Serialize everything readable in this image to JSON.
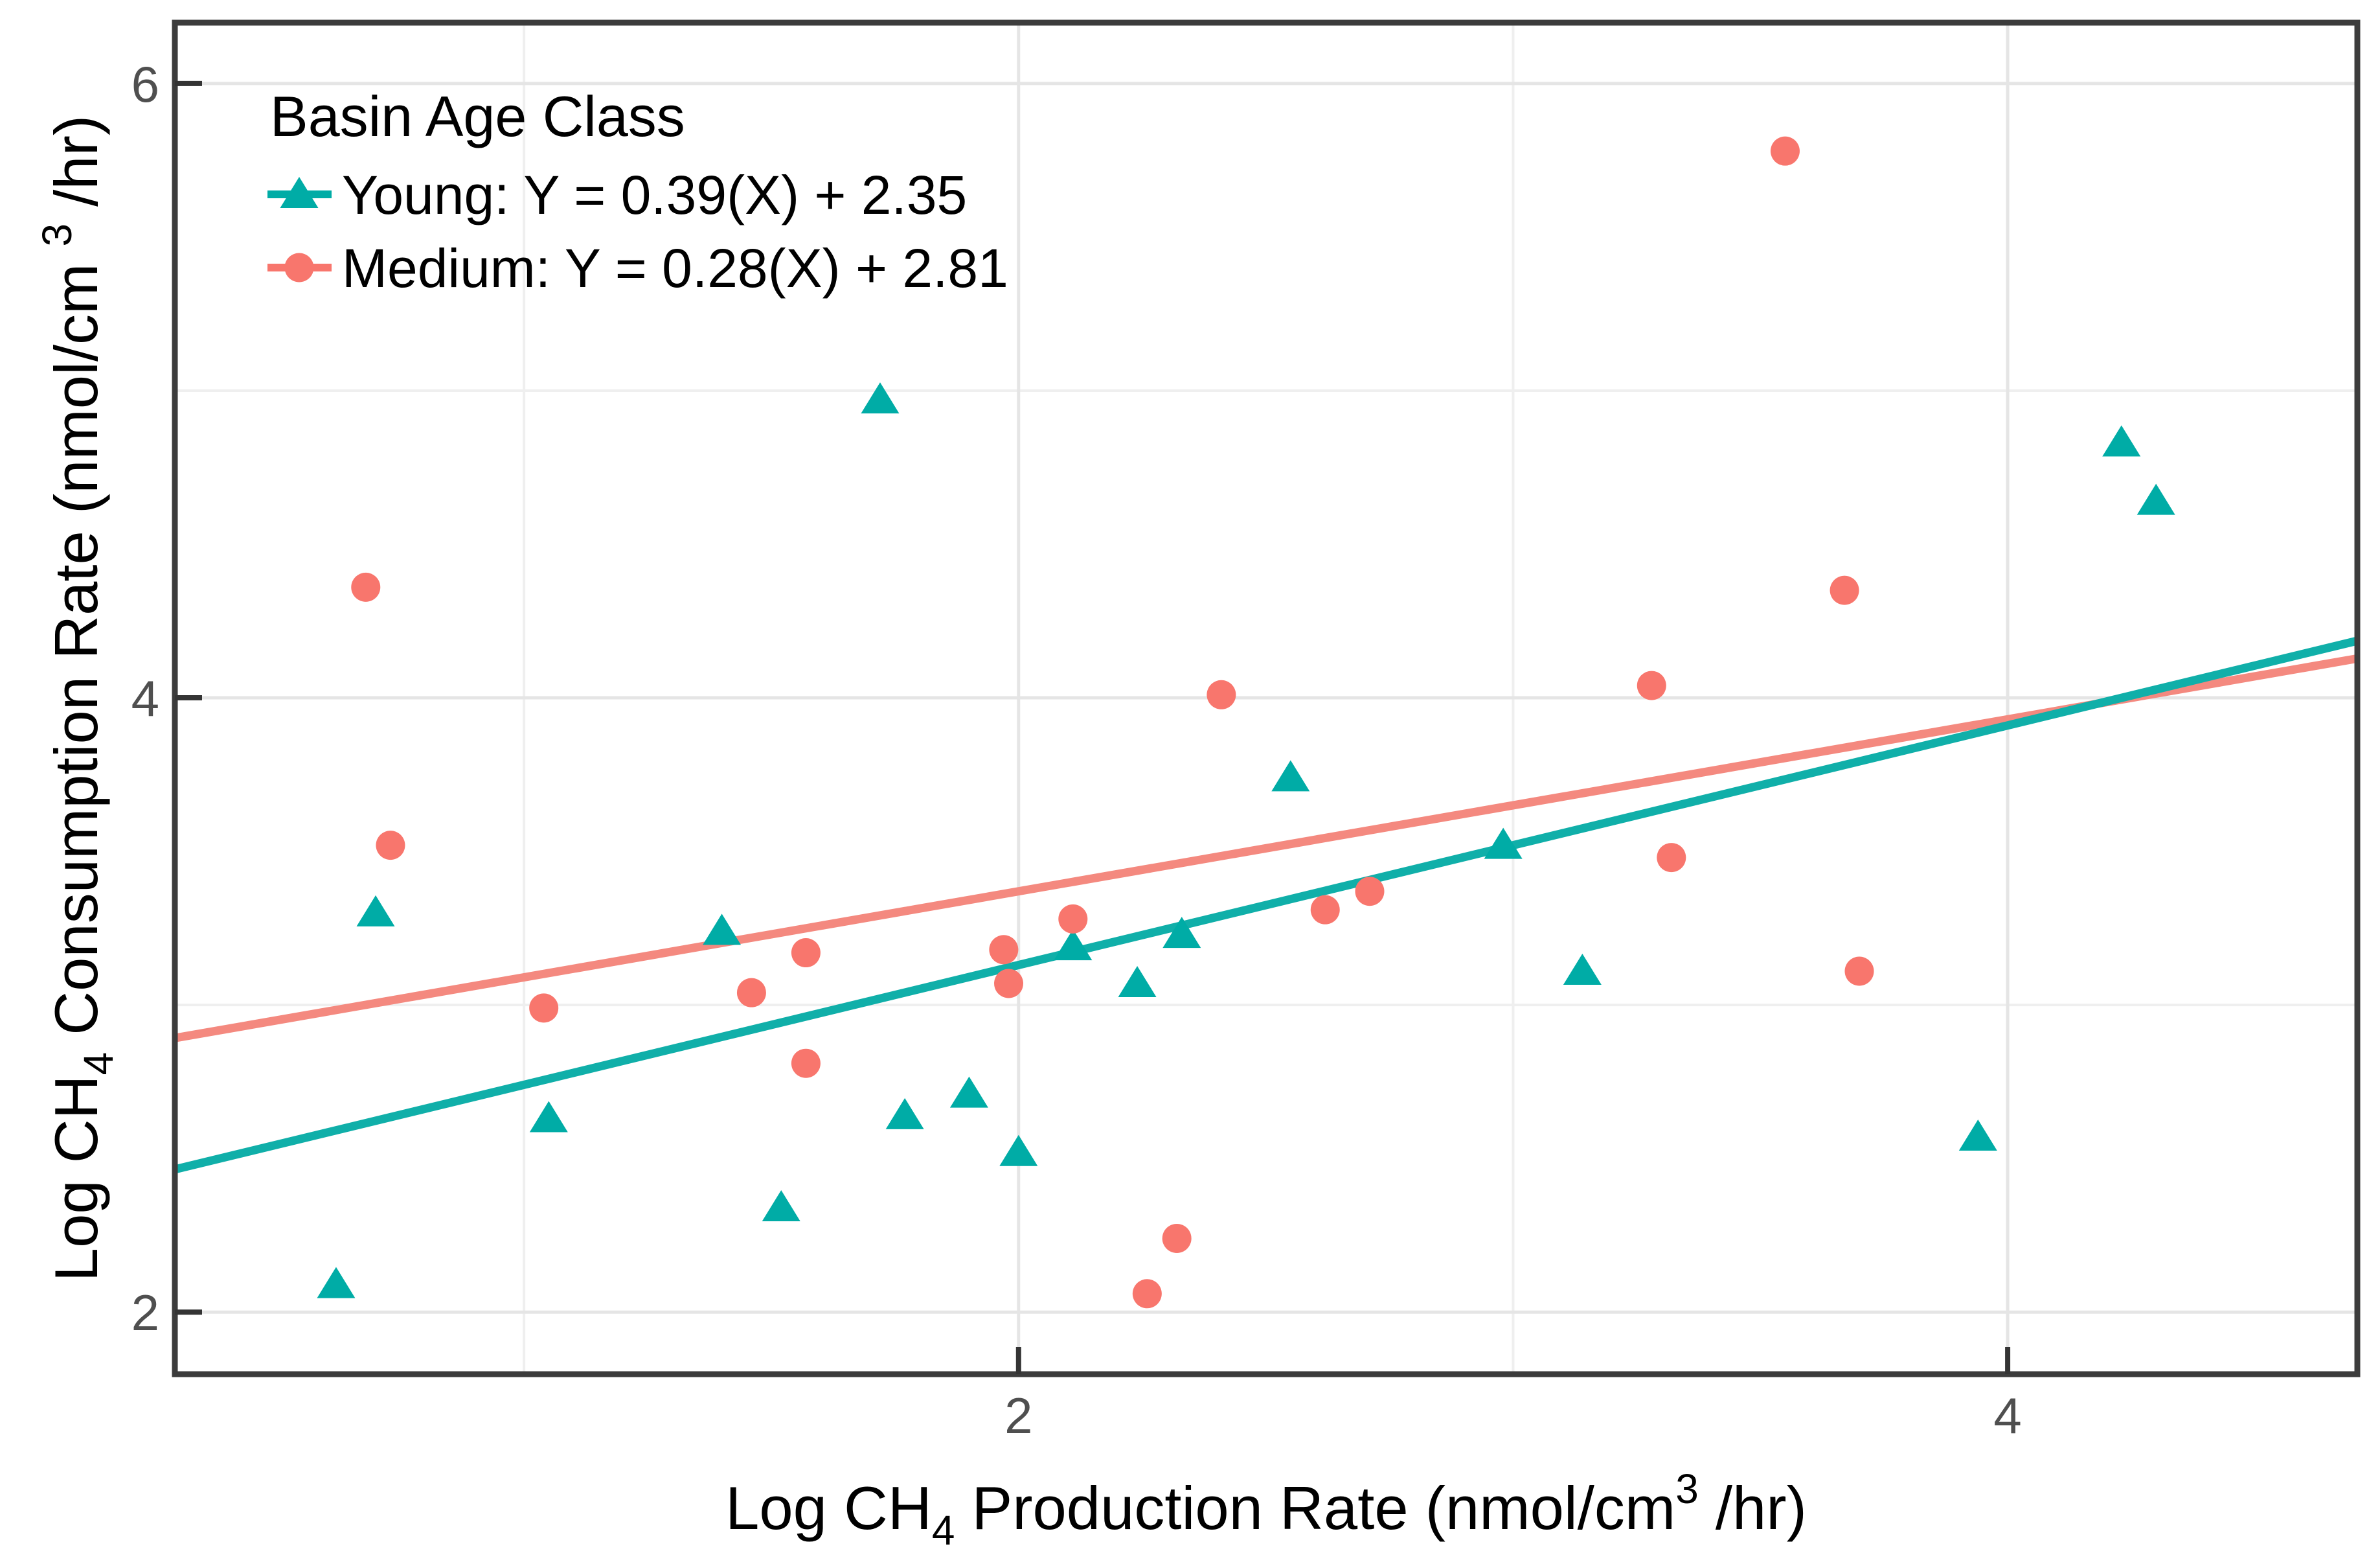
{
  "figure": {
    "kind": "scatter-plot-with-regression",
    "background": "#FFFFFF"
  },
  "chart_data": {
    "type": "scatter",
    "title": "",
    "xlabel": "Log CH4 Production Rate (nmol/cm3/hr)",
    "ylabel": "Log CH4 Consumption Rate (nmol/cm3/hr)",
    "xlabel_parts": [
      {
        "t": "Log CH",
        "s": "n"
      },
      {
        "t": "4",
        "s": "sub"
      },
      {
        "t": " Production Rate (nmol/cm",
        "s": "n"
      },
      {
        "t": "3",
        "s": "sup"
      },
      {
        "t": "/hr)",
        "s": "n"
      }
    ],
    "ylabel_parts": [
      {
        "t": "Log CH",
        "s": "n"
      },
      {
        "t": "4",
        "s": "sub"
      },
      {
        "t": " Consumption Rate (nmol/cm ",
        "s": "n"
      },
      {
        "t": "3",
        "s": "sup"
      },
      {
        "t": "/hr)",
        "s": "n"
      }
    ],
    "xlim": [
      0.294,
      4.707
    ],
    "ylim": [
      1.798,
      6.198
    ],
    "x_ticks": [
      2,
      4
    ],
    "y_ticks": [
      2,
      4,
      6
    ],
    "x_minor_gridlines": [
      1,
      3
    ],
    "y_minor_gridlines": [
      3,
      5
    ],
    "grid": true,
    "legend": {
      "title": "Basin Age Class",
      "position": "top-left",
      "entries": [
        {
          "series": "Young",
          "label": "Young: Y = 0.39(X) + 2.35",
          "marker": "triangle",
          "color": "#00ACA6"
        },
        {
          "series": "Medium",
          "label": "Medium: Y = 0.28(X) + 2.81",
          "marker": "circle",
          "color": "#F8766D"
        }
      ]
    },
    "series": [
      {
        "name": "Young",
        "marker": "triangle",
        "color": "#00ACA6",
        "line_color": "#10AFA9",
        "regression": {
          "slope": 0.39,
          "intercept": 2.35
        },
        "points": [
          [
            0.62,
            2.09
          ],
          [
            0.7,
            3.3
          ],
          [
            1.05,
            2.63
          ],
          [
            1.4,
            3.24
          ],
          [
            1.52,
            2.34
          ],
          [
            1.72,
            4.97
          ],
          [
            1.77,
            2.64
          ],
          [
            1.9,
            2.71
          ],
          [
            2.0,
            2.52
          ],
          [
            2.11,
            3.19
          ],
          [
            2.24,
            3.07
          ],
          [
            2.33,
            3.23
          ],
          [
            2.55,
            3.74
          ],
          [
            2.98,
            3.52
          ],
          [
            3.14,
            3.11
          ],
          [
            3.94,
            2.57
          ],
          [
            4.23,
            4.83
          ],
          [
            4.3,
            4.64
          ]
        ]
      },
      {
        "name": "Medium",
        "marker": "circle",
        "color": "#F8766D",
        "line_color": "#F4897F",
        "regression": {
          "slope": 0.28,
          "intercept": 2.81
        },
        "points": [
          [
            0.68,
            4.36
          ],
          [
            0.73,
            3.52
          ],
          [
            1.04,
            2.99
          ],
          [
            1.46,
            3.04
          ],
          [
            1.57,
            3.17
          ],
          [
            1.57,
            2.81
          ],
          [
            1.97,
            3.18
          ],
          [
            1.98,
            3.07
          ],
          [
            2.11,
            3.28
          ],
          [
            2.26,
            2.06
          ],
          [
            2.32,
            2.24
          ],
          [
            2.41,
            4.01
          ],
          [
            2.62,
            3.31
          ],
          [
            2.71,
            3.37
          ],
          [
            3.28,
            4.04
          ],
          [
            3.32,
            3.48
          ],
          [
            3.55,
            5.78
          ],
          [
            3.67,
            4.35
          ],
          [
            3.7,
            3.11
          ]
        ]
      }
    ],
    "style": {
      "grid_major_color": "#E5E5E5",
      "grid_minor_color": "#EFEFEF",
      "panel_border_color": "#3C3C3C",
      "tick_color": "#343434",
      "tick_label_color": "#4F4F4F",
      "axis_title_color": "#000000",
      "legend_text_color": "#000000"
    }
  }
}
